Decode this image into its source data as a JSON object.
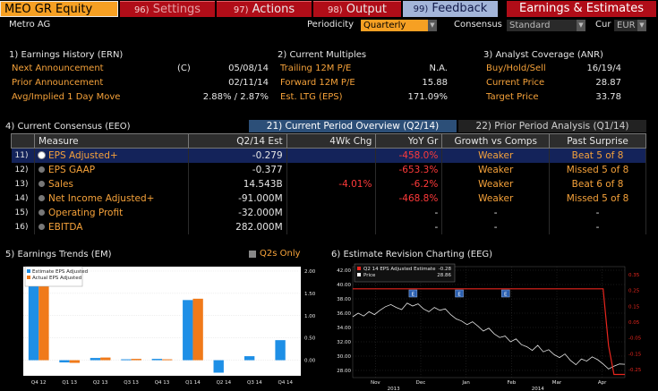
{
  "topbar": {
    "ticker": "MEO GR Equity",
    "settings": {
      "num": "96)",
      "label": "Settings"
    },
    "actions": {
      "num": "97)",
      "label": "Actions"
    },
    "output": {
      "num": "98)",
      "label": "Output"
    },
    "feedback": {
      "num": "99)",
      "label": "Feedback"
    },
    "earnings": "Earnings & Estimates"
  },
  "subheader": {
    "company": "Metro AG",
    "periodicity_label": "Periodicity",
    "periodicity_value": "Quarterly",
    "consensus_label": "Consensus",
    "consensus_value": "Standard",
    "cur_label": "Cur",
    "cur_value": "EUR"
  },
  "earnings_history": {
    "title": "1) Earnings History (ERN)",
    "rows": [
      {
        "label": "Next Announcement",
        "prefix": "(C)",
        "value": "05/08/14"
      },
      {
        "label": "Prior Announcement",
        "prefix": "",
        "value": "02/11/14"
      },
      {
        "label": "Avg/Implied 1 Day Move",
        "prefix": "",
        "value": "2.88% / 2.87%"
      }
    ]
  },
  "current_multiples": {
    "title": "2) Current Multiples",
    "rows": [
      {
        "label": "Trailing 12M P/E",
        "value": "N.A."
      },
      {
        "label": "Forward 12M P/E",
        "value": "15.88"
      },
      {
        "label": "Est. LTG (EPS)",
        "value": "171.09%"
      }
    ]
  },
  "analyst_coverage": {
    "title": "3) Analyst Coverage (ANR)",
    "rows": [
      {
        "label": "Buy/Hold/Sell",
        "value": "16/19/4"
      },
      {
        "label": "Current Price",
        "value": "28.87"
      },
      {
        "label": "Target Price",
        "value": "33.78"
      }
    ]
  },
  "consensus": {
    "title": "4) Current Consensus (EEO)",
    "tab_current": "21) Current Period Overview (Q2/14)",
    "tab_prior": "22) Prior Period Analysis (Q1/14)",
    "headers": [
      "Measure",
      "Q2/14 Est",
      "4Wk Chg",
      "YoY Gr",
      "Growth vs Comps",
      "Past Surprise"
    ],
    "rows": [
      {
        "idx": "11)",
        "measure": "EPS Adjusted+",
        "est": "-0.279",
        "chg": "",
        "yoy": "-458.0%",
        "growth": "Weaker",
        "surprise": "Beat 5 of 8"
      },
      {
        "idx": "12)",
        "measure": "EPS GAAP",
        "est": "-0.377",
        "chg": "",
        "yoy": "-653.3%",
        "growth": "Weaker",
        "surprise": "Missed 5 of 8"
      },
      {
        "idx": "13)",
        "measure": "Sales",
        "est": "14.543B",
        "chg": "-4.01%",
        "yoy": "-6.2%",
        "growth": "Weaker",
        "surprise": "Beat 6 of 8"
      },
      {
        "idx": "14)",
        "measure": "Net Income Adjusted+",
        "est": "-91.000M",
        "chg": "",
        "yoy": "-468.8%",
        "growth": "Weaker",
        "surprise": "Missed 5 of 8"
      },
      {
        "idx": "15)",
        "measure": "Operating Profit",
        "est": "-32.000M",
        "chg": "",
        "yoy": "-",
        "growth": "-",
        "surprise": "-"
      },
      {
        "idx": "16)",
        "measure": "EBITDA",
        "est": "282.000M",
        "chg": "",
        "yoy": "-",
        "growth": "-",
        "surprise": "-"
      }
    ]
  },
  "earnings_trends": {
    "title": "5) Earnings Trends (EM)",
    "q2s_only": "Q2s Only"
  },
  "revision_charting": {
    "title": "6) Estimate Revision Charting (EEG)"
  },
  "chart_data": [
    {
      "type": "bar",
      "legend": [
        "Estimate EPS Adjusted",
        "Actual EPS Adjusted"
      ],
      "categories": [
        "Q4 12",
        "Q1 13",
        "Q2 13",
        "Q3 13",
        "Q4 13",
        "Q1 14",
        "Q2 14",
        "Q3 14",
        "Q4 14"
      ],
      "series": [
        {
          "name": "Estimate EPS Adjusted",
          "color": "#1e8fe6",
          "values": [
            2.05,
            -0.05,
            0.05,
            0.02,
            0.03,
            1.35,
            -0.28,
            0.09,
            0.45
          ]
        },
        {
          "name": "Actual EPS Adjusted",
          "color": "#f07a1a",
          "values": [
            1.92,
            -0.06,
            0.06,
            0.03,
            0.02,
            1.38,
            null,
            null,
            null
          ]
        }
      ],
      "yticks": [
        "2.00",
        "1.50",
        "1.00",
        "0.50",
        "0.00"
      ],
      "ylim": [
        -0.35,
        2.1
      ]
    },
    {
      "type": "line",
      "legend": [
        {
          "label": "Q2 14 EPS Adjusted Estimate",
          "value": "-0.28",
          "color": "#e8261e"
        },
        {
          "label": "Price",
          "value": "28.86",
          "color": "#ffffff"
        }
      ],
      "xticks": [
        "Nov",
        "Dec",
        "Jan",
        "Feb",
        "Mar",
        "Apr"
      ],
      "xsub": [
        "2013",
        "2014"
      ],
      "yticks_left": [
        "42.00",
        "40.00",
        "38.00",
        "36.00",
        "34.00",
        "32.00",
        "30.00",
        "28.00"
      ],
      "yticks_right": [
        "0.35",
        "0.25",
        "0.15",
        "0.05",
        "-0.05",
        "-0.15",
        "-0.25"
      ],
      "price_range": [
        27,
        42.5
      ],
      "estimate_range": [
        -0.3,
        0.4
      ],
      "price": [
        35.5,
        36.0,
        35.6,
        36.2,
        35.8,
        36.4,
        36.9,
        37.2,
        36.8,
        36.5,
        37.4,
        37.0,
        37.3,
        36.6,
        36.2,
        36.8,
        36.4,
        36.6,
        35.8,
        35.2,
        34.9,
        34.4,
        34.8,
        34.2,
        33.5,
        33.9,
        33.1,
        32.6,
        32.8,
        32.0,
        32.4,
        31.6,
        31.3,
        30.8,
        31.5,
        30.6,
        30.9,
        30.2,
        29.8,
        30.3,
        29.4,
        28.8,
        29.6,
        29.3,
        29.9,
        29.5,
        28.9,
        28.2,
        28.6,
        28.9,
        28.86
      ],
      "estimate": [
        0.26,
        0.26,
        0.26,
        0.26,
        0.26,
        0.26,
        0.26,
        0.26,
        0.26,
        0.26,
        0.26,
        0.26,
        0.26,
        0.26,
        0.26,
        0.26,
        0.26,
        0.26,
        0.26,
        0.26,
        0.26,
        0.26,
        0.26,
        0.26,
        0.26,
        0.26,
        0.26,
        0.26,
        0.26,
        0.26,
        0.26,
        0.26,
        0.26,
        0.26,
        0.26,
        0.26,
        0.26,
        0.26,
        0.26,
        0.26,
        0.26,
        0.26,
        0.26,
        0.26,
        0.26,
        0.26,
        0.26,
        -0.1,
        -0.28,
        -0.28,
        -0.28
      ],
      "event_markers": [
        {
          "label": "E"
        },
        {
          "label": "E"
        },
        {
          "label": "E"
        }
      ]
    }
  ]
}
